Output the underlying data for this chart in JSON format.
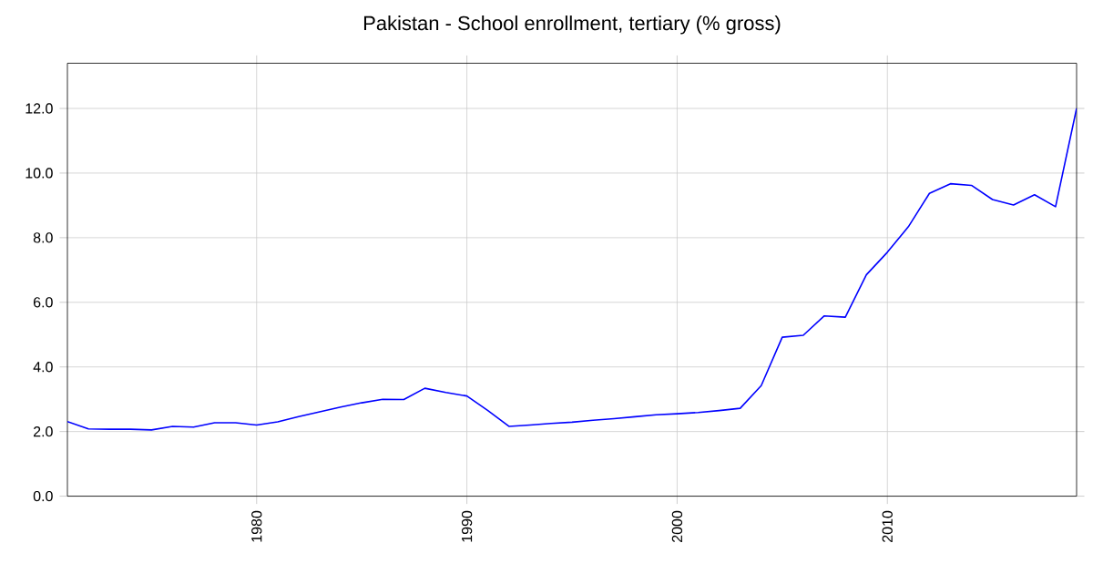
{
  "chart_data": {
    "type": "line",
    "title": "Pakistan - School enrollment, tertiary (% gross)",
    "x": [
      1971,
      1972,
      1973,
      1974,
      1975,
      1976,
      1977,
      1978,
      1979,
      1980,
      1981,
      1982,
      1983,
      1984,
      1985,
      1986,
      1987,
      1988,
      1989,
      1990,
      1991,
      1992,
      1993,
      1994,
      1995,
      1996,
      1997,
      1998,
      1999,
      2000,
      2001,
      2002,
      2003,
      2004,
      2005,
      2006,
      2007,
      2008,
      2009,
      2010,
      2011,
      2012,
      2013,
      2014,
      2015,
      2016,
      2017,
      2018,
      2019
    ],
    "series": [
      {
        "color": "#0000ff",
        "values": [
          2.31,
          2.08,
          2.07,
          2.07,
          2.05,
          2.16,
          2.14,
          2.27,
          2.27,
          2.2,
          2.3,
          2.46,
          2.61,
          2.76,
          2.89,
          3.0,
          2.99,
          3.34,
          3.21,
          3.1,
          2.65,
          2.16,
          2.2,
          2.25,
          2.29,
          2.35,
          2.4,
          2.46,
          2.52,
          2.55,
          2.59,
          2.65,
          2.72,
          3.42,
          4.92,
          4.98,
          5.58,
          5.54,
          6.85,
          7.55,
          8.34,
          9.37,
          9.67,
          9.62,
          9.18,
          9.01,
          9.33,
          8.96,
          12.0
        ]
      }
    ],
    "xlim": [
      1971,
      2019
    ],
    "ylim": [
      0,
      13.4
    ],
    "xticks": [
      1980,
      1990,
      2000,
      2010
    ],
    "yticks": [
      {
        "value": 0,
        "label": "0.0"
      },
      {
        "value": 2,
        "label": "2.0"
      },
      {
        "value": 4,
        "label": "4.0"
      },
      {
        "value": 6,
        "label": "6.0"
      },
      {
        "value": 8,
        "label": "8.0"
      },
      {
        "value": 10,
        "label": "10.0"
      },
      {
        "value": 12,
        "label": "12.0"
      }
    ],
    "grid": true,
    "marker": "none",
    "line_style": "solid"
  }
}
